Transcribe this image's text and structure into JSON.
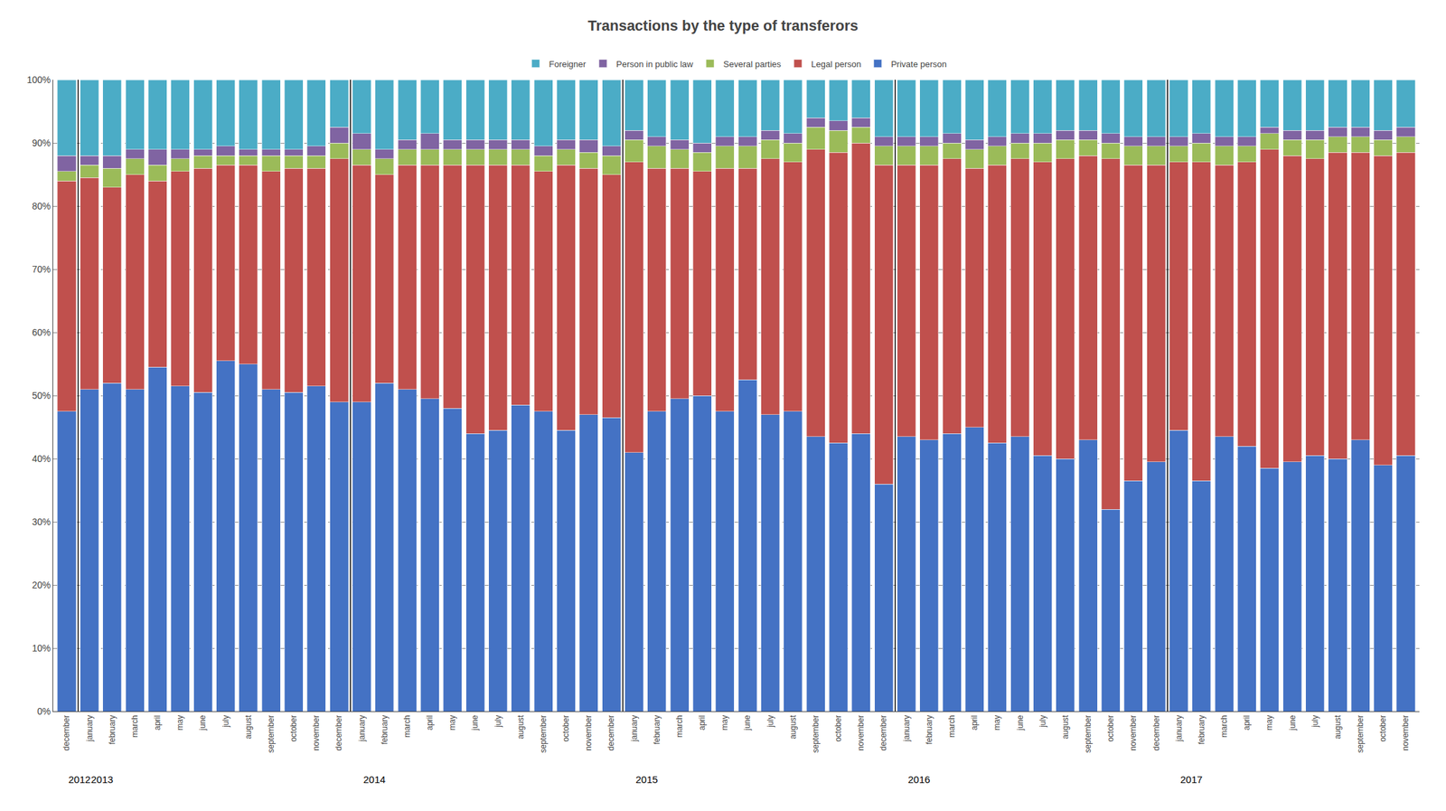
{
  "chart_data": {
    "type": "bar",
    "stacked": true,
    "title": "Transactions by the type of transferors",
    "categories": [
      "december",
      "january",
      "february",
      "march",
      "april",
      "may",
      "june",
      "july",
      "august",
      "september",
      "october",
      "november",
      "december",
      "january",
      "february",
      "march",
      "april",
      "may",
      "june",
      "july",
      "august",
      "september",
      "october",
      "november",
      "december",
      "january",
      "february",
      "march",
      "april",
      "may",
      "june",
      "july",
      "august",
      "september",
      "october",
      "november",
      "december",
      "january",
      "february",
      "march",
      "april",
      "may",
      "june",
      "july",
      "august",
      "september",
      "october",
      "november",
      "december",
      "january",
      "february",
      "march",
      "april",
      "may",
      "june",
      "july",
      "august",
      "september",
      "october",
      "november"
    ],
    "series": [
      {
        "name": "Private person",
        "color": "#4472C4",
        "values": [
          47.5,
          51.0,
          52.0,
          51.0,
          54.5,
          51.5,
          50.5,
          55.5,
          55.0,
          51.0,
          50.5,
          51.5,
          49.0,
          49.0,
          52.0,
          51.0,
          49.5,
          48.0,
          44.0,
          44.5,
          48.5,
          47.5,
          44.5,
          47.0,
          46.5,
          41.0,
          47.5,
          49.5,
          50.0,
          47.5,
          52.5,
          47.0,
          47.5,
          43.5,
          42.5,
          44.0,
          36.0,
          43.5,
          43.0,
          44.0,
          45.0,
          42.5,
          43.5,
          40.5,
          40.0,
          43.0,
          32.0,
          36.5,
          39.5,
          44.5,
          36.5,
          43.5,
          42.0,
          38.5,
          39.5,
          40.5,
          40.0,
          43.0,
          39.0,
          40.5
        ]
      },
      {
        "name": "Legal person",
        "color": "#C0504D",
        "values": [
          36.5,
          33.5,
          31.0,
          34.0,
          29.5,
          34.0,
          35.5,
          31.0,
          31.5,
          34.5,
          35.5,
          34.5,
          38.5,
          37.5,
          33.0,
          35.5,
          37.0,
          38.5,
          42.5,
          42.0,
          38.0,
          38.0,
          42.0,
          39.0,
          38.5,
          46.0,
          38.5,
          36.5,
          35.5,
          38.5,
          33.5,
          40.5,
          39.5,
          45.5,
          46.0,
          46.0,
          50.5,
          43.0,
          43.5,
          43.5,
          41.0,
          44.0,
          44.0,
          46.5,
          47.5,
          45.0,
          55.5,
          50.0,
          47.0,
          42.5,
          50.5,
          43.0,
          45.0,
          50.5,
          48.5,
          47.0,
          48.5,
          45.5,
          49.0,
          48.0
        ]
      },
      {
        "name": "Several parties",
        "color": "#9BBB59",
        "values": [
          1.5,
          2.0,
          3.0,
          2.5,
          2.5,
          2.0,
          2.0,
          1.5,
          1.5,
          2.5,
          2.0,
          2.0,
          2.5,
          2.5,
          2.5,
          2.5,
          2.5,
          2.5,
          2.5,
          2.5,
          2.5,
          2.5,
          2.5,
          2.5,
          3.0,
          3.5,
          3.5,
          3.0,
          3.0,
          3.5,
          3.5,
          3.0,
          3.0,
          3.5,
          3.5,
          2.5,
          3.0,
          3.0,
          3.0,
          2.5,
          3.0,
          3.0,
          2.5,
          3.0,
          3.0,
          2.5,
          2.5,
          3.0,
          3.0,
          2.5,
          3.0,
          3.0,
          2.5,
          2.5,
          2.5,
          3.0,
          2.5,
          2.5,
          2.5,
          2.5
        ]
      },
      {
        "name": "Person in public law",
        "color": "#8064A2",
        "values": [
          2.5,
          1.5,
          2.0,
          1.5,
          2.5,
          1.5,
          1.0,
          1.5,
          1.0,
          1.0,
          1.0,
          1.5,
          2.5,
          2.5,
          1.5,
          1.5,
          2.5,
          1.5,
          1.5,
          1.5,
          1.5,
          1.5,
          1.5,
          2.0,
          1.5,
          1.5,
          1.5,
          1.5,
          1.5,
          1.5,
          1.5,
          1.5,
          1.5,
          1.5,
          1.5,
          1.5,
          1.5,
          1.5,
          1.5,
          1.5,
          1.5,
          1.5,
          1.5,
          1.5,
          1.5,
          1.5,
          1.5,
          1.5,
          1.5,
          1.5,
          1.5,
          1.5,
          1.5,
          1.0,
          1.5,
          1.5,
          1.5,
          1.5,
          1.5,
          1.5
        ]
      },
      {
        "name": "Foreigner",
        "color": "#4BACC6",
        "values": [
          12.0,
          12.0,
          12.0,
          11.0,
          11.0,
          11.0,
          11.0,
          10.5,
          11.0,
          11.0,
          11.0,
          10.5,
          7.5,
          8.5,
          11.0,
          9.5,
          8.5,
          9.5,
          9.5,
          9.5,
          9.5,
          10.5,
          9.5,
          9.5,
          10.5,
          8.0,
          9.0,
          9.5,
          10.0,
          9.0,
          9.0,
          8.0,
          8.5,
          6.0,
          6.5,
          6.0,
          9.0,
          9.0,
          9.0,
          8.5,
          9.5,
          9.0,
          8.5,
          8.5,
          8.0,
          8.0,
          8.5,
          9.0,
          9.0,
          9.0,
          8.5,
          9.0,
          9.0,
          7.5,
          8.0,
          8.0,
          7.5,
          7.5,
          8.0,
          7.5
        ]
      }
    ],
    "ylim": [
      0,
      100
    ],
    "yticks": [
      {
        "value": 0,
        "label": "0%"
      },
      {
        "value": 10,
        "label": "10%"
      },
      {
        "value": 20,
        "label": "20%"
      },
      {
        "value": 30,
        "label": "30%"
      },
      {
        "value": 40,
        "label": "40%"
      },
      {
        "value": 50,
        "label": "50%"
      },
      {
        "value": 60,
        "label": "60%"
      },
      {
        "value": 70,
        "label": "70%"
      },
      {
        "value": 80,
        "label": "80%"
      },
      {
        "value": 90,
        "label": "90%"
      },
      {
        "value": 100,
        "label": "100%"
      }
    ],
    "grid": true,
    "legend": "upper center",
    "annotations": [
      {
        "text": "2012",
        "x": 0
      },
      {
        "text": "2013",
        "x": 1
      },
      {
        "text": "2014",
        "x": 13
      },
      {
        "text": "2015",
        "x": 25
      },
      {
        "text": "2016",
        "x": 37
      },
      {
        "text": "2017",
        "x": 49
      }
    ]
  }
}
